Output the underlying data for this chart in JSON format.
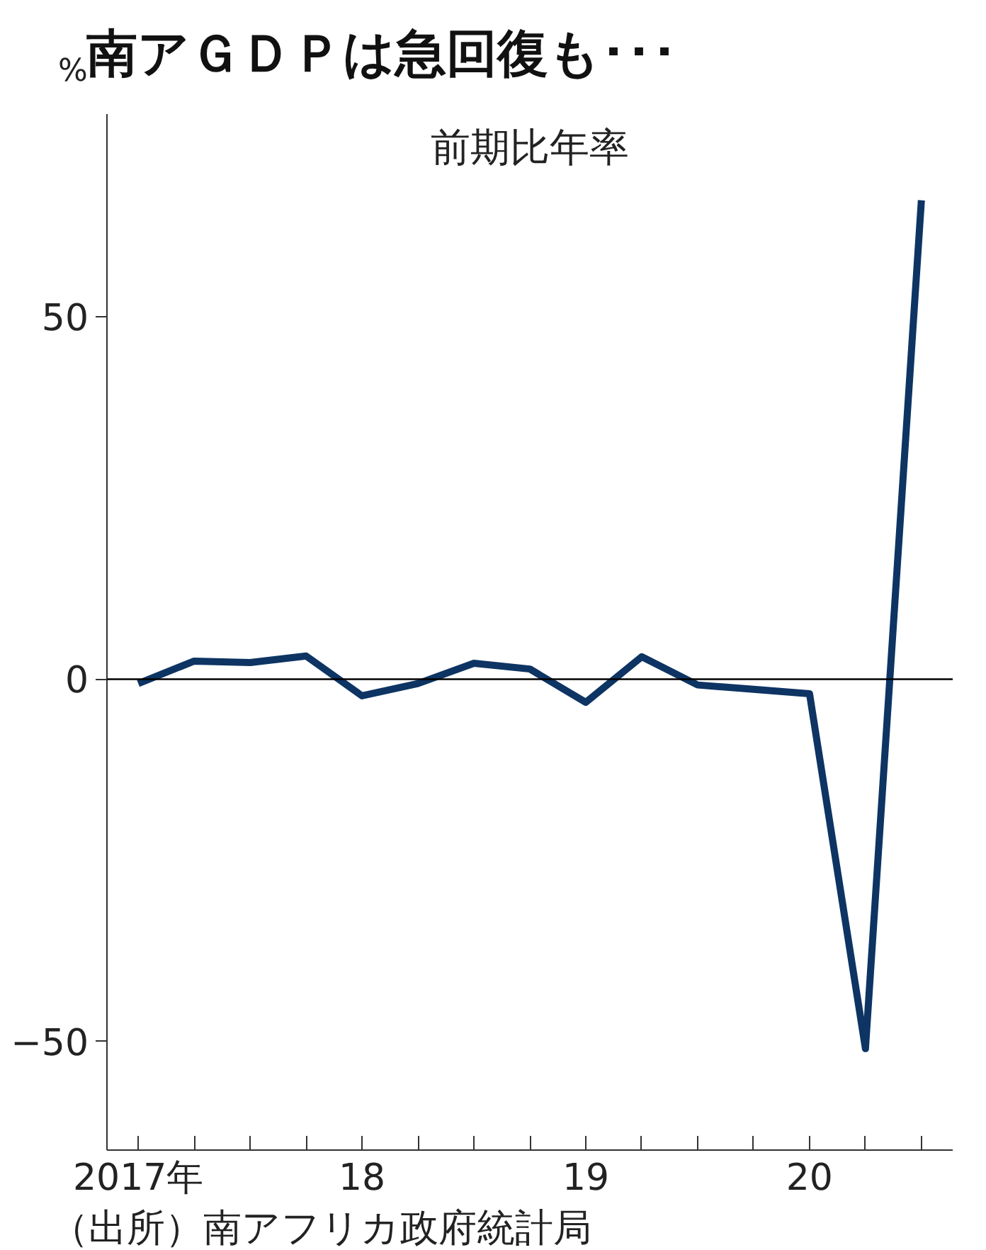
{
  "chart_data": {
    "type": "line",
    "title": "南アＧＤＰは急回復も･･･",
    "subtitle": "前期比年率",
    "ylabel": "%",
    "annotations": [
      "（出所）南アフリカ政府統計局"
    ],
    "series": [
      {
        "color": "#0d3463",
        "values": [
          -0.6,
          2.5,
          2.3,
          3.2,
          -2.3,
          -0.6,
          2.2,
          1.4,
          -3.2,
          3.1,
          -0.8,
          -1.4,
          -2.0,
          -51.0,
          66.1
        ]
      }
    ],
    "categories": [
      "2017年",
      null,
      null,
      null,
      "18",
      null,
      null,
      null,
      "19",
      null,
      null,
      null,
      "20",
      null,
      null
    ],
    "ylim": [
      -65,
      78
    ],
    "yticks": [
      -50,
      0,
      50
    ],
    "ref_lines": [
      {
        "axis": "y",
        "value": 0,
        "color": "#000000"
      }
    ]
  }
}
